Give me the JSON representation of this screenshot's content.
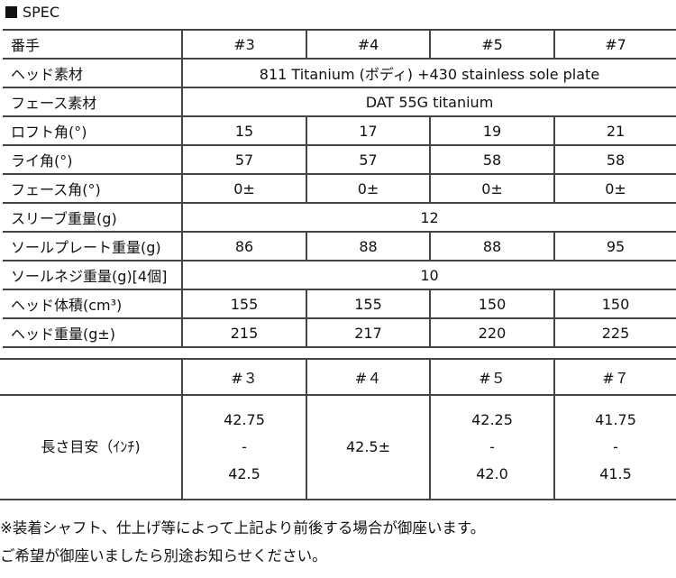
{
  "title": "SPEC",
  "spec": {
    "headers": [
      "番手",
      "#3",
      "#4",
      "#5",
      "#7"
    ],
    "rows": [
      {
        "label": "ヘッド素材",
        "span": "811 Titanium (ボディ) +430 stainless sole plate"
      },
      {
        "label": "フェース素材",
        "span": "DAT 55G titanium"
      },
      {
        "label": "ロフト角(°)",
        "values": [
          "15",
          "17",
          "19",
          "21"
        ]
      },
      {
        "label": "ライ角(°)",
        "values": [
          "57",
          "57",
          "58",
          "58"
        ]
      },
      {
        "label": "フェース角(°)",
        "values": [
          "0±",
          "0±",
          "0±",
          "0±"
        ]
      },
      {
        "label": "スリーブ重量(g)",
        "span": "12"
      },
      {
        "label": "ソールプレート重量(g)",
        "values": [
          "86",
          "88",
          "88",
          "95"
        ]
      },
      {
        "label": "ソールネジ重量(g)[4個]",
        "span": "10"
      },
      {
        "label": "ヘッド体積(cm³)",
        "values": [
          "155",
          "155",
          "150",
          "150"
        ]
      },
      {
        "label": "ヘッド重量(g±)",
        "values": [
          "215",
          "217",
          "220",
          "225"
        ]
      }
    ]
  },
  "length": {
    "headers": [
      "#３",
      "#４",
      "#５",
      "#７"
    ],
    "label": "長さ目安（ｲﾝﾁ)",
    "values": [
      [
        "42.75",
        "-",
        "42.5"
      ],
      [
        "42.5±"
      ],
      [
        "42.25",
        "-",
        "42.0"
      ],
      [
        "41.75",
        "-",
        "41.5"
      ]
    ]
  },
  "notes": [
    "※装着シャフト、仕上げ等によって上記より前後する場合が御座います。",
    "ご希望が御座いましたら別途お知らせください。"
  ]
}
